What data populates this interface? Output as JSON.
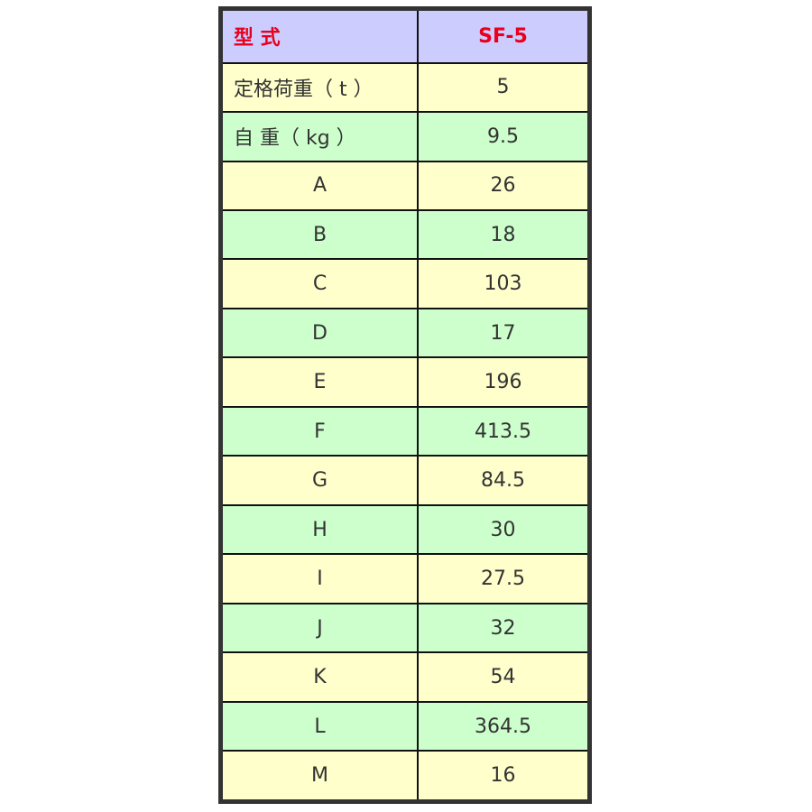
{
  "header": {
    "label": "型 式",
    "model": "SF-5"
  },
  "rows": [
    {
      "label": "定格荷重（ t ）",
      "value": "5"
    },
    {
      "label": "自 重（ kg ）",
      "value": "9.5"
    },
    {
      "label": "A",
      "value": "26"
    },
    {
      "label": "B",
      "value": "18"
    },
    {
      "label": "C",
      "value": "103"
    },
    {
      "label": "D",
      "value": "17"
    },
    {
      "label": "E",
      "value": "196"
    },
    {
      "label": "F",
      "value": "413.5"
    },
    {
      "label": "G",
      "value": "84.5"
    },
    {
      "label": "H",
      "value": "30"
    },
    {
      "label": "I",
      "value": "27.5"
    },
    {
      "label": "J",
      "value": "32"
    },
    {
      "label": "K",
      "value": "54"
    },
    {
      "label": "L",
      "value": "364.5"
    },
    {
      "label": "M",
      "value": "16"
    }
  ],
  "colors": {
    "header": "#ccccff",
    "header_text": "#e8001c",
    "row_odd": "#ffffcc",
    "row_even": "#ccffcc"
  }
}
